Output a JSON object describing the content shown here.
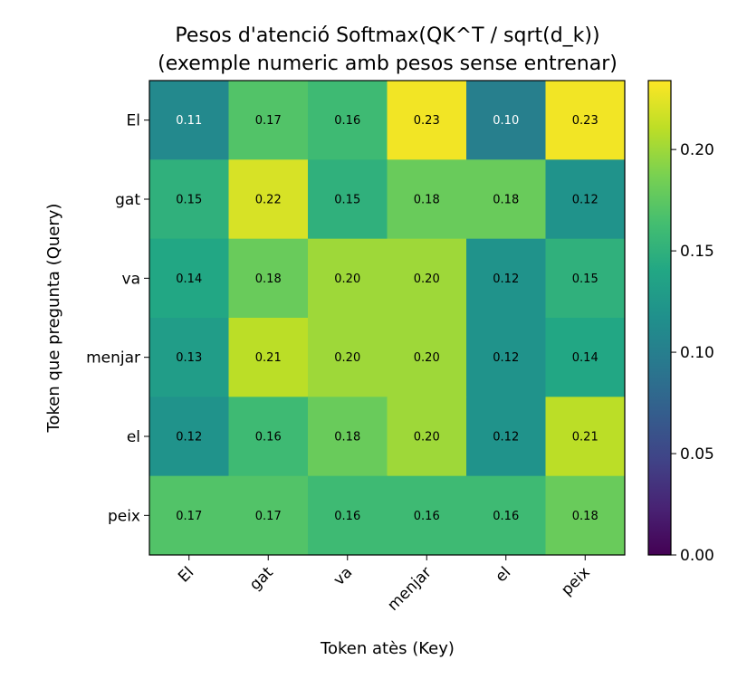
{
  "chart_data": {
    "type": "heatmap",
    "title": "Pesos d'atenció Softmax(QK^T / sqrt(d_k))",
    "subtitle": "(exemple numeric amb pesos sense entrenar)",
    "xlabel": "Token atès (Key)",
    "ylabel": "Token que pregunta (Query)",
    "x_categories": [
      "El",
      "gat",
      "va",
      "menjar",
      "el",
      "peix"
    ],
    "y_categories": [
      "El",
      "gat",
      "va",
      "menjar",
      "el",
      "peix"
    ],
    "values": [
      [
        0.11,
        0.17,
        0.16,
        0.23,
        0.1,
        0.23
      ],
      [
        0.15,
        0.22,
        0.15,
        0.18,
        0.18,
        0.12
      ],
      [
        0.14,
        0.18,
        0.2,
        0.2,
        0.12,
        0.15
      ],
      [
        0.13,
        0.21,
        0.2,
        0.2,
        0.12,
        0.14
      ],
      [
        0.12,
        0.16,
        0.18,
        0.2,
        0.12,
        0.21
      ],
      [
        0.17,
        0.17,
        0.16,
        0.16,
        0.16,
        0.18
      ]
    ],
    "cell_labels": [
      [
        "0.11",
        "0.17",
        "0.16",
        "0.23",
        "0.10",
        "0.23"
      ],
      [
        "0.15",
        "0.22",
        "0.15",
        "0.18",
        "0.18",
        "0.12"
      ],
      [
        "0.14",
        "0.18",
        "0.20",
        "0.20",
        "0.12",
        "0.15"
      ],
      [
        "0.13",
        "0.21",
        "0.20",
        "0.20",
        "0.12",
        "0.14"
      ],
      [
        "0.12",
        "0.16",
        "0.18",
        "0.20",
        "0.12",
        "0.21"
      ],
      [
        "0.17",
        "0.17",
        "0.16",
        "0.16",
        "0.16",
        "0.18"
      ]
    ],
    "colormap": "viridis",
    "color_range": [
      0.0,
      0.234
    ],
    "colorbar_ticks": [
      0.0,
      0.05,
      0.1,
      0.15,
      0.2
    ],
    "colorbar_tick_labels": [
      "0.00",
      "0.05",
      "0.10",
      "0.15",
      "0.20"
    ],
    "colors": {
      "label_dark": "#000000",
      "label_light": "#ffffff",
      "frame": "#000000"
    }
  }
}
